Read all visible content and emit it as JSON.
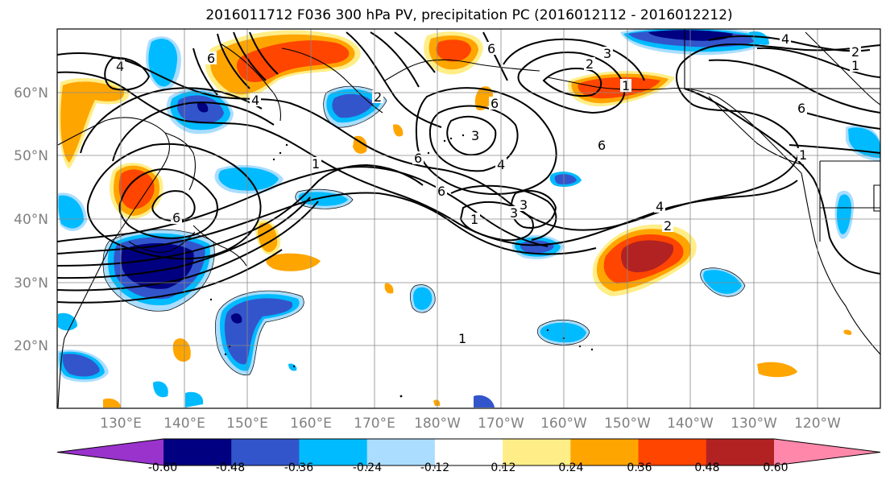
{
  "title": "2016011712 F036 300 hPa PV, precipitation PC (2016012112 - 2016012212)",
  "lat_labels": [
    "60°N",
    "50°N",
    "40°N",
    "30°N",
    "20°N"
  ],
  "lon_labels": [
    "130°E",
    "140°E",
    "150°E",
    "160°E",
    "170°E",
    "180°W",
    "170°W",
    "160°W",
    "150°W",
    "140°W",
    "130°W",
    "120°W"
  ],
  "colorbar": {
    "colors": [
      "#9933cc",
      "#000080",
      "#3355cc",
      "#00bbff",
      "#aaddff",
      "#ffffff",
      "#ffee88",
      "#ffa500",
      "#ff4500",
      "#b22222",
      "#ff88aa"
    ],
    "tick_labels": [
      "-0.60",
      "-0.48",
      "-0.36",
      "-0.24",
      "-0.12",
      "0.12",
      "0.24",
      "0.36",
      "0.48",
      "0.60"
    ]
  },
  "contour_labels": [
    "4",
    "6",
    "6",
    "1",
    "6",
    "6",
    "3",
    "6",
    "4",
    "6",
    "1",
    "3",
    "4",
    "2",
    "3",
    "2",
    "1",
    "4",
    "1",
    "6",
    "6",
    "2",
    "4",
    "2",
    "1",
    "3",
    "1"
  ]
}
